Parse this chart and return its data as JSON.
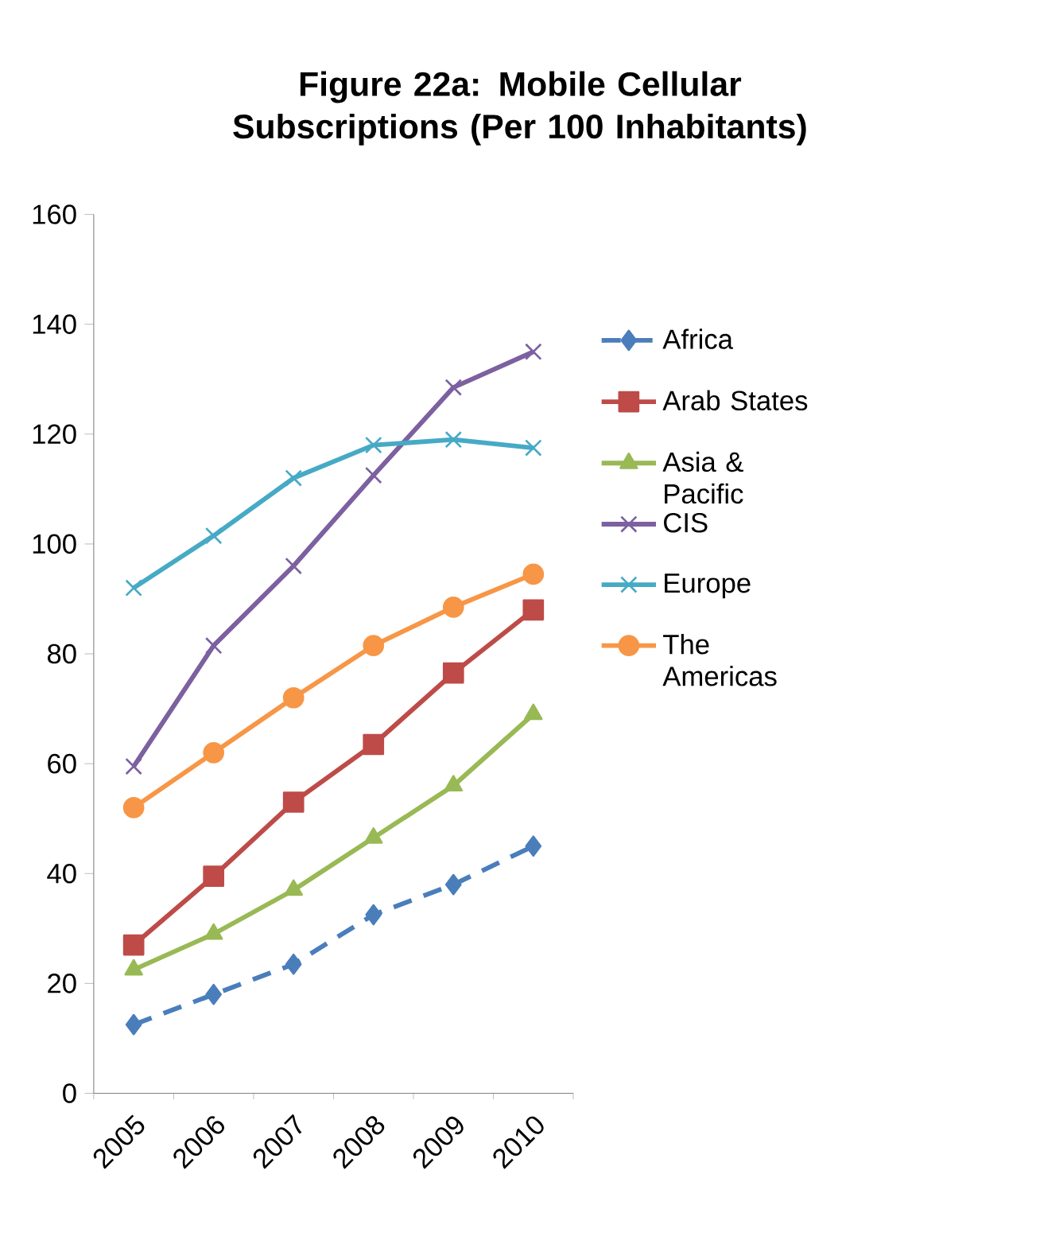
{
  "chart_data": {
    "type": "line",
    "title": "Figure 22a: Mobile Cellular Subscriptions (Per 100 Inhabitants)",
    "categories": [
      "2005",
      "2006",
      "2007",
      "2008",
      "2009",
      "2010"
    ],
    "series": [
      {
        "name": "Africa",
        "color": "#4a7ebb",
        "marker": "diamond",
        "line_style": "dashed",
        "values": [
          12.5,
          18,
          23.5,
          32.5,
          38,
          45
        ]
      },
      {
        "name": "Arab States",
        "color": "#be4b48",
        "marker": "square",
        "line_style": "solid",
        "values": [
          27,
          39.5,
          53,
          63.5,
          76.5,
          88
        ]
      },
      {
        "name": "Asia & Pacific",
        "color": "#98b954",
        "marker": "triangle",
        "line_style": "solid",
        "values": [
          22.5,
          29,
          37,
          46.5,
          56,
          69
        ]
      },
      {
        "name": "CIS",
        "color": "#7d60a0",
        "marker": "cross",
        "line_style": "solid",
        "values": [
          59.5,
          81.5,
          96,
          112.5,
          128.5,
          135
        ]
      },
      {
        "name": "Europe",
        "color": "#46aac5",
        "marker": "cross",
        "line_style": "solid",
        "values": [
          92,
          101.5,
          112,
          118,
          119,
          117.5
        ]
      },
      {
        "name": "The Americas",
        "color": "#f79646",
        "marker": "circle",
        "line_style": "solid",
        "values": [
          52,
          62,
          72,
          81.5,
          88.5,
          94.5
        ]
      }
    ],
    "ylim": [
      0,
      160
    ],
    "yticks": [
      0,
      20,
      40,
      60,
      80,
      100,
      120,
      140,
      160
    ],
    "grid": false,
    "legend": "right"
  }
}
